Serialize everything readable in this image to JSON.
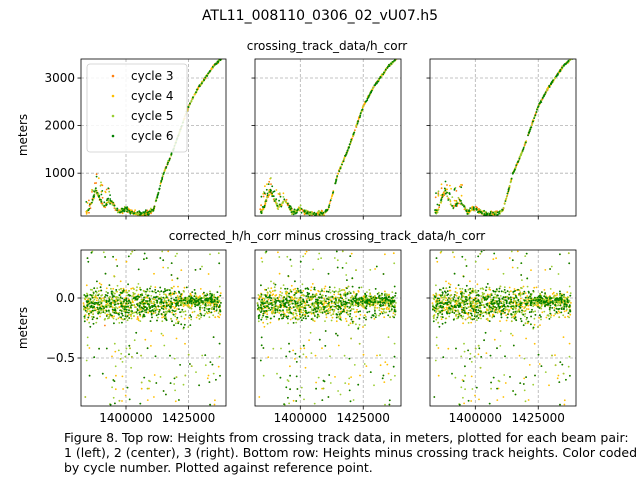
{
  "figure": {
    "title": "ATL11_008110_0306_02_vU07.h5",
    "caption": "Figure 8. Top row: Heights from crossing track data, in meters, plotted for each beam pair: 1 (left), 2 (center), 3 (right). Bottom row: Heights minus crossing track heights. Color coded by cycle number. Plotted against reference point."
  },
  "chart_data": [
    {
      "type": "scatter",
      "title": "crossing_track_data/h_corr",
      "ylabel": "meters",
      "xlim": [
        1382000,
        1440000
      ],
      "ylim": [
        100,
        3400
      ],
      "yticks": [
        1000,
        2000,
        3000
      ],
      "xticks": [
        1400000,
        1425000
      ],
      "xticklabels": [
        "",
        ""
      ],
      "grid": true,
      "legend_placement": "upper-left",
      "panels": [
        "beam pair 1",
        "beam pair 2",
        "beam pair 3"
      ],
      "series": [
        {
          "name": "cycle 3",
          "color": "#ff7f0e"
        },
        {
          "name": "cycle 4",
          "color": "#ffbf00"
        },
        {
          "name": "cycle 5",
          "color": "#9acd32"
        },
        {
          "name": "cycle 6",
          "color": "#008000"
        }
      ],
      "profile_x": [
        1385000,
        1388000,
        1391000,
        1394000,
        1397000,
        1400000,
        1403000,
        1406000,
        1409000,
        1411000,
        1413000,
        1415000,
        1417000,
        1419000,
        1421000,
        1423000,
        1425000,
        1427000,
        1429000,
        1431000,
        1433000,
        1435000,
        1437000,
        1439000
      ],
      "profile_y": [
        200,
        650,
        280,
        420,
        180,
        250,
        160,
        140,
        170,
        230,
        600,
        1000,
        1250,
        1500,
        1800,
        2100,
        2400,
        2600,
        2800,
        2950,
        3100,
        3250,
        3350,
        3450
      ]
    },
    {
      "type": "scatter",
      "title": "corrected_h/h_corr minus crossing_track_data/h_corr",
      "ylabel": "meters",
      "xlim": [
        1382000,
        1440000
      ],
      "ylim": [
        -0.9,
        0.4
      ],
      "yticks": [
        -0.5,
        0.0
      ],
      "yticklabels": [
        "−0.5",
        "0.0"
      ],
      "xticks": [
        1400000,
        1425000
      ],
      "xticklabels": [
        "1400000",
        "1425000"
      ],
      "grid": true,
      "panels": [
        "beam pair 1",
        "beam pair 2",
        "beam pair 3"
      ],
      "series": [
        {
          "name": "cycle 3",
          "color": "#ff7f0e"
        },
        {
          "name": "cycle 4",
          "color": "#ffbf00"
        },
        {
          "name": "cycle 5",
          "color": "#9acd32"
        },
        {
          "name": "cycle 6",
          "color": "#008000"
        }
      ]
    }
  ]
}
